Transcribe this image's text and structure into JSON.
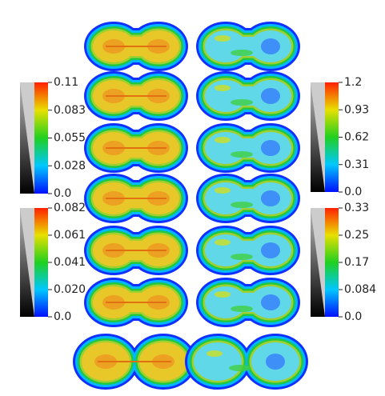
{
  "colorbars": [
    {
      "ticks": [
        "0.11",
        "0.083",
        "0.055",
        "0.028",
        "0.0"
      ]
    },
    {
      "ticks": [
        "0.082",
        "0.061",
        "0.041",
        "0.020",
        "0.0"
      ]
    },
    {
      "ticks": [
        "1.2",
        "0.93",
        "0.62",
        "0.31",
        "0.0"
      ]
    },
    {
      "ticks": [
        "0.33",
        "0.25",
        "0.17",
        "0.084",
        "0.0"
      ]
    }
  ]
}
